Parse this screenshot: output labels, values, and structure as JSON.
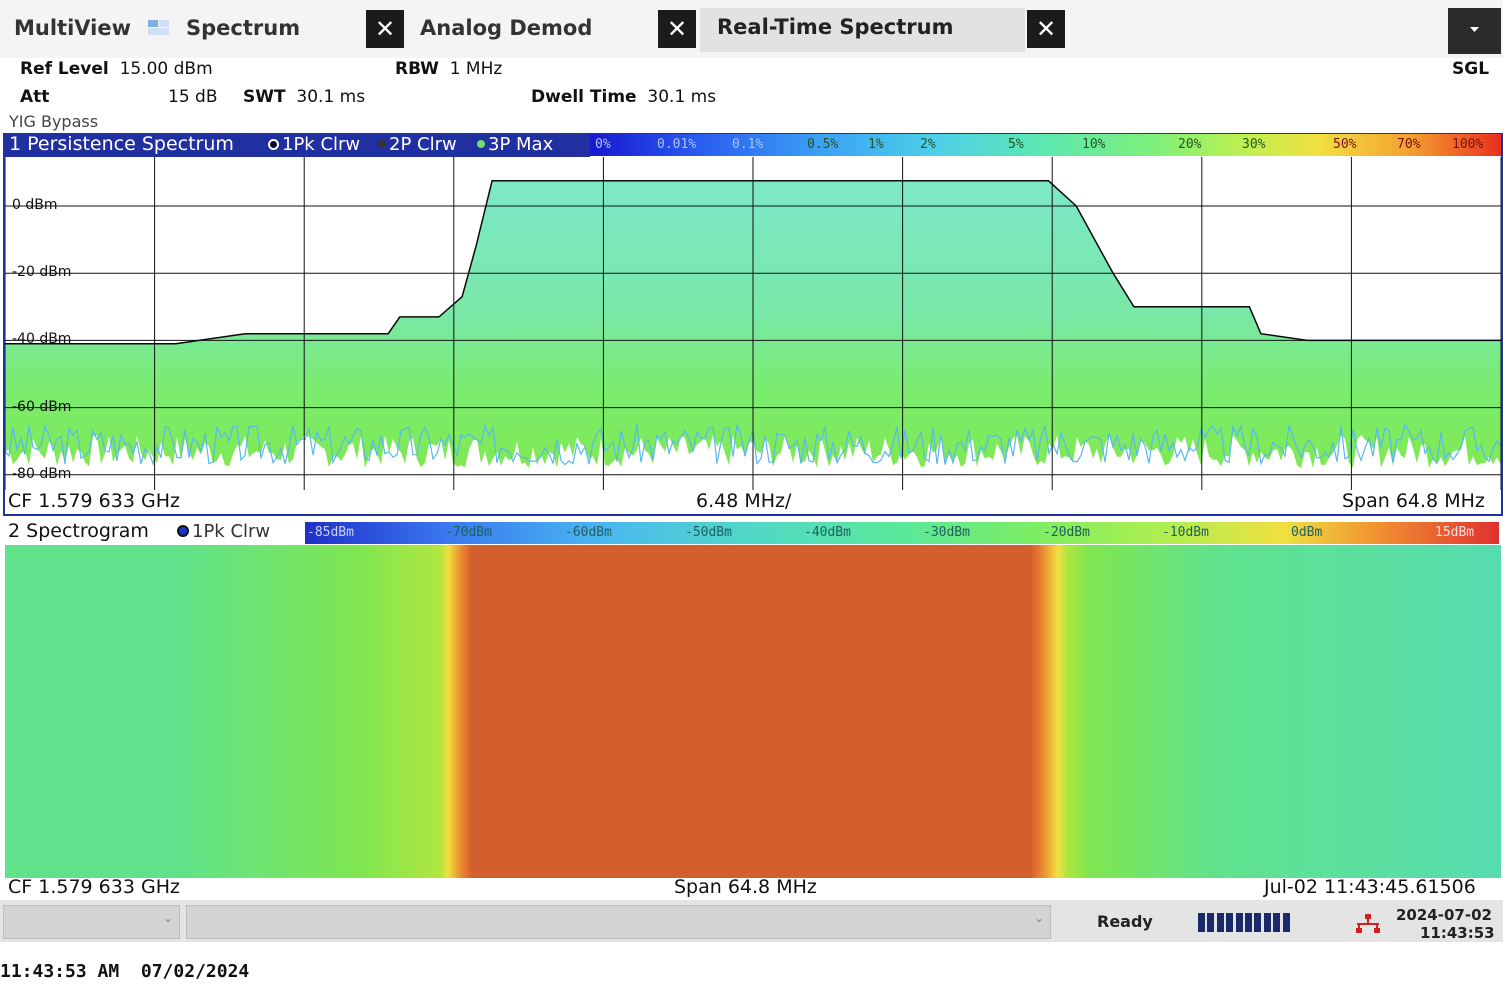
{
  "tabs": {
    "multiview": "MultiView",
    "spectrum": "Spectrum",
    "analog_demod": "Analog Demod",
    "realtime": "Real-Time Spectrum",
    "close_glyph": "✕"
  },
  "header": {
    "ref_level_label": "Ref Level",
    "ref_level_value": "15.00 dBm",
    "att_label": "Att",
    "att_value": "15 dB",
    "swt_label": "SWT",
    "swt_value": "30.1 ms",
    "rbw_label": "RBW",
    "rbw_value": "1 MHz",
    "dwell_label": "Dwell Time",
    "dwell_value": "30.1 ms",
    "mode": "SGL",
    "yig": "YIG Bypass"
  },
  "persistence": {
    "title": "1 Persistence Spectrum",
    "traces": [
      {
        "label": "1Pk Clrw",
        "color": "#1a1a3a"
      },
      {
        "label": "2P Clrw",
        "color": "#333333"
      },
      {
        "label": "3P Max",
        "color": "#6ee06e"
      }
    ],
    "color_scale": [
      "0%",
      "0.01%",
      "0.1%",
      "0.5%",
      "1%",
      "2%",
      "5%",
      "10%",
      "20%",
      "30%",
      "50%",
      "70%",
      "100%"
    ],
    "y_labels": [
      "0 dBm",
      "-20 dBm",
      "-40 dBm",
      "-60 dBm",
      "-80 dBm"
    ],
    "cf": "CF 1.579 633 GHz",
    "div": "6.48 MHz/",
    "span": "Span 64.8 MHz"
  },
  "spectrogram": {
    "title": "2 Spectrogram",
    "trace": {
      "label": "1Pk Clrw",
      "color": "#1a33cc"
    },
    "color_scale": [
      "-85dBm",
      "-70dBm",
      "-60dBm",
      "-50dBm",
      "-40dBm",
      "-30dBm",
      "-20dBm",
      "-10dBm",
      "0dBm",
      "15dBm"
    ],
    "cf": "CF 1.579 633 GHz",
    "span": "Span 64.8 MHz",
    "timestamp": "Jul-02 11:43:45.61506"
  },
  "status": {
    "ready": "Ready",
    "date": "2024-07-02",
    "time": "11:43:53",
    "dropdown_arrow": "⌄"
  },
  "capture": {
    "stamp": "11:43:53 AM  07/02/2024"
  },
  "colors": {
    "window_header": "#2030a0",
    "spectrogram_band": "#d45f2e",
    "trace_outline": "#0a0a0a"
  },
  "chart_data": [
    {
      "type": "area",
      "title": "1 Persistence Spectrum",
      "xlabel": "",
      "ylabel": "",
      "units": {
        "x": "MHz offset from CF",
        "y": "dBm"
      },
      "ylim": [
        -85,
        15
      ],
      "xlim": [
        -32.4,
        32.4
      ],
      "grid": true,
      "series": [
        {
          "name": "1Pk Clrw",
          "x": [
            -32.4,
            -28.5,
            -25.0,
            -22.0,
            -20.3,
            -19.8,
            -15.8,
            -15.3,
            -13.6,
            -12.6,
            -12.0,
            -11.3,
            0,
            12.0,
            12.8,
            14.0,
            15.6,
            16.5,
            20.0,
            21.5,
            22.0,
            24.0,
            28.0,
            32.4
          ],
          "values": [
            -41,
            -41,
            -41,
            -38,
            -38,
            -38,
            -38,
            -33,
            -33,
            -27,
            -12,
            7.5,
            7.5,
            7.5,
            7.5,
            0,
            -20,
            -30,
            -30,
            -30,
            -38,
            -40,
            -40,
            -40
          ]
        }
      ],
      "noise_floor": [
        -80,
        -55
      ]
    },
    {
      "type": "heatmap",
      "title": "2 Spectrogram",
      "units": {
        "x": "MHz offset from CF",
        "value": "dBm"
      },
      "xlim": [
        -32.4,
        32.4
      ],
      "value_range": [
        -85,
        15
      ],
      "profile": {
        "x": [
          -32.4,
          -25.0,
          -17.0,
          -13.6,
          -12.2,
          12.0,
          13.6,
          14.5,
          20.0,
          32.4
        ],
        "values": [
          -45,
          -45,
          -40,
          -30,
          8,
          8,
          -30,
          -40,
          -45,
          -48
        ]
      }
    }
  ]
}
